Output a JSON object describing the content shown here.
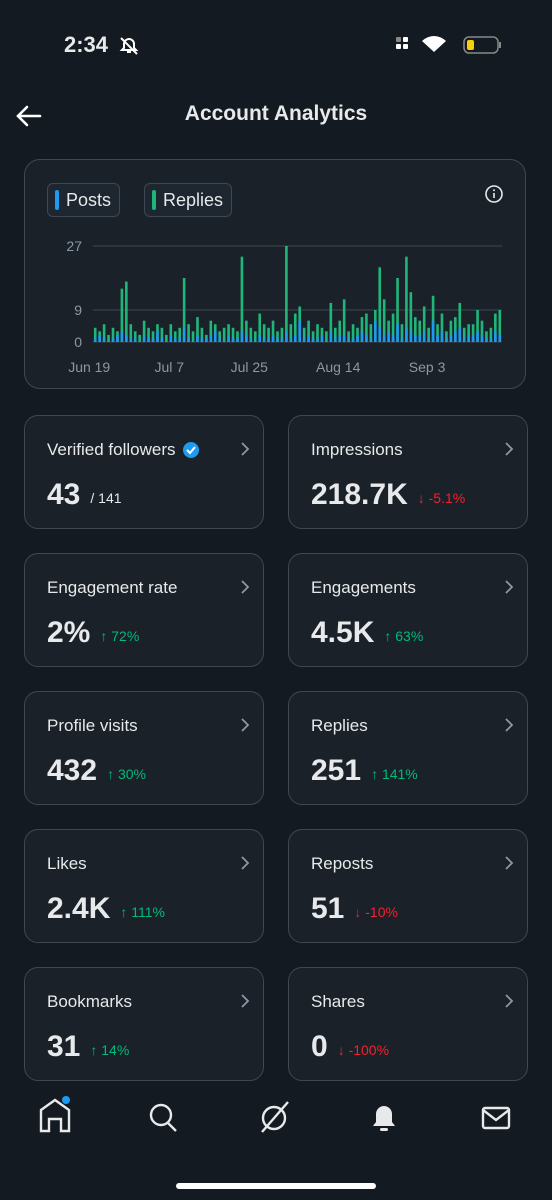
{
  "status_bar": {
    "time": "2:34"
  },
  "header": {
    "title": "Account Analytics"
  },
  "chart_data": {
    "type": "bar",
    "categories": [
      "Jun 19",
      null,
      null,
      null,
      null,
      null,
      null,
      null,
      null,
      null,
      null,
      null,
      null,
      null,
      null,
      null,
      null,
      null,
      "Jul 7",
      null,
      null,
      null,
      null,
      null,
      null,
      null,
      null,
      null,
      null,
      null,
      null,
      null,
      null,
      null,
      null,
      null,
      "Jul 25",
      null,
      null,
      null,
      null,
      null,
      null,
      null,
      null,
      null,
      null,
      null,
      null,
      null,
      null,
      null,
      null,
      null,
      null,
      null,
      "Aug 14",
      null,
      null,
      null,
      null,
      null,
      null,
      null,
      null,
      null,
      null,
      null,
      null,
      null,
      null,
      null,
      null,
      null,
      null,
      null,
      "Sep 3",
      null,
      null,
      null,
      null,
      null,
      null,
      null,
      null,
      null,
      null,
      null,
      null,
      null,
      null,
      null
    ],
    "series": [
      {
        "name": "Replies",
        "color": "#1fb67a",
        "values": [
          4,
          3,
          5,
          2,
          4,
          3,
          15,
          17,
          5,
          3,
          2,
          6,
          4,
          3,
          5,
          4,
          2,
          5,
          3,
          4,
          18,
          5,
          3,
          7,
          4,
          2,
          6,
          5,
          3,
          4,
          5,
          4,
          3,
          24,
          6,
          4,
          3,
          8,
          5,
          4,
          6,
          3,
          4,
          27,
          5,
          8,
          10,
          4,
          6,
          3,
          5,
          4,
          3,
          11,
          4,
          6,
          12,
          3,
          5,
          4,
          7,
          8,
          5,
          9,
          21,
          12,
          6,
          8,
          18,
          5,
          24,
          14,
          7,
          6,
          10,
          4,
          13,
          5,
          8,
          3,
          6,
          7,
          11,
          4,
          5,
          5,
          9,
          6,
          3,
          4,
          8,
          9
        ]
      },
      {
        "name": "Posts",
        "color": "#1d9bf0",
        "values": [
          1,
          2,
          1,
          0,
          1,
          2,
          3,
          2,
          1,
          1,
          0,
          2,
          1,
          1,
          3,
          1,
          0,
          2,
          1,
          1,
          4,
          1,
          0,
          2,
          1,
          1,
          2,
          3,
          1,
          0,
          2,
          1,
          1,
          3,
          2,
          1,
          0,
          2,
          1,
          1,
          2,
          1,
          1,
          3,
          1,
          2,
          6,
          1,
          2,
          1,
          1,
          2,
          0,
          3,
          1,
          2,
          2,
          1,
          1,
          2,
          3,
          2,
          1,
          6,
          4,
          2,
          3,
          2,
          5,
          1,
          4,
          3,
          2,
          2,
          3,
          1,
          6,
          2,
          3,
          1,
          2,
          3,
          4,
          1,
          2,
          2,
          3,
          2,
          1,
          1,
          3,
          2
        ]
      }
    ],
    "legend_order": [
      1,
      0
    ],
    "ylim": [
      0,
      27
    ],
    "yticks": [
      0,
      9,
      27
    ],
    "grid": true
  },
  "cards": [
    {
      "title": "Verified followers",
      "value": "43",
      "extra": "/ 141",
      "verified": true
    },
    {
      "title": "Impressions",
      "value": "218.7K",
      "extra": "↓ -5.1%",
      "trend": "down"
    },
    {
      "title": "Engagement rate",
      "value": "2%",
      "extra": "↑ 72%",
      "trend": "up"
    },
    {
      "title": "Engagements",
      "value": "4.5K",
      "extra": "↑ 63%",
      "trend": "up"
    },
    {
      "title": "Profile visits",
      "value": "432",
      "extra": "↑ 30%",
      "trend": "up"
    },
    {
      "title": "Replies",
      "value": "251",
      "extra": "↑ 141%",
      "trend": "up"
    },
    {
      "title": "Likes",
      "value": "2.4K",
      "extra": "↑ 111%",
      "trend": "up"
    },
    {
      "title": "Reposts",
      "value": "51",
      "extra": "↓ -10%",
      "trend": "down"
    },
    {
      "title": "Bookmarks",
      "value": "31",
      "extra": "↑ 14%",
      "trend": "up"
    },
    {
      "title": "Shares",
      "value": "0",
      "extra": "↓ -100%",
      "trend": "down"
    }
  ]
}
